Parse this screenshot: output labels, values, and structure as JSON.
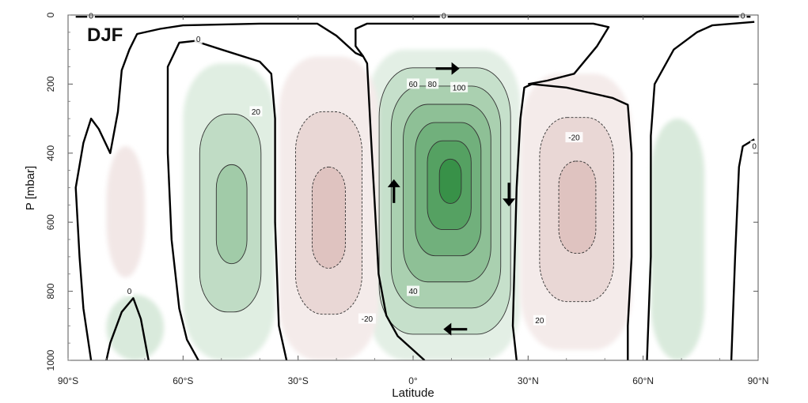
{
  "chart_data": {
    "type": "heatmap",
    "panel_label": "DJF",
    "xlabel": "Latitude",
    "ylabel": "P [mbar]",
    "xlim": [
      -90,
      90
    ],
    "ylim": [
      1000,
      0
    ],
    "x_ticks": [
      {
        "value": -90,
        "label": "90°S"
      },
      {
        "value": -60,
        "label": "60°S"
      },
      {
        "value": -30,
        "label": "30°S"
      },
      {
        "value": 0,
        "label": "0°"
      },
      {
        "value": 30,
        "label": "30°N"
      },
      {
        "value": 60,
        "label": "60°N"
      },
      {
        "value": 90,
        "label": "90°N"
      }
    ],
    "y_ticks": [
      {
        "value": 0,
        "label": "0"
      },
      {
        "value": 200,
        "label": "200"
      },
      {
        "value": 400,
        "label": "400"
      },
      {
        "value": 600,
        "label": "600"
      },
      {
        "value": 800,
        "label": "800"
      },
      {
        "value": 1000,
        "label": "1000"
      }
    ],
    "colors": {
      "positive": "#2e8b3e",
      "negative": "#b77a72",
      "zero_contour": "#000000"
    },
    "cells": [
      {
        "name": "tropical-north-cell",
        "sign": "positive",
        "lat": [
          -12,
          28
        ],
        "p": [
          100,
          1000
        ],
        "peak_lat": 10,
        "peak_p": 470,
        "peak": 130
      },
      {
        "name": "south-mid-latitude-cell",
        "sign": "negative",
        "lat": [
          -35,
          -9
        ],
        "p": [
          120,
          1000
        ],
        "peak_lat": -22,
        "peak_p": 600,
        "peak": -30
      },
      {
        "name": "north-mid-latitude-cell",
        "sign": "positive",
        "lat": [
          -60,
          -36
        ],
        "p": [
          140,
          1000
        ],
        "peak_lat": -47,
        "peak_p": 580,
        "peak": 28
      },
      {
        "name": "north-ferrel-cell",
        "sign": "negative",
        "lat": [
          28,
          57
        ],
        "p": [
          170,
          970
        ],
        "peak_lat": 43,
        "peak_p": 550,
        "peak": -28
      },
      {
        "name": "south-polar-cell",
        "sign": "positive",
        "lat": [
          -80,
          -65
        ],
        "p": [
          810,
          1000
        ],
        "peak_lat": -72,
        "peak_p": 930,
        "peak": 5
      },
      {
        "name": "south-polar-neg-cell",
        "sign": "negative",
        "lat": [
          -80,
          -70
        ],
        "p": [
          380,
          760
        ],
        "peak_lat": -75,
        "peak_p": 560,
        "peak": -3
      },
      {
        "name": "north-polar-cell",
        "sign": "positive",
        "lat": [
          62,
          76
        ],
        "p": [
          300,
          1000
        ],
        "peak_lat": 69,
        "peak_p": 650,
        "peak": 6
      }
    ],
    "contour_labels": [
      {
        "text": "0",
        "lat": -84,
        "p": 2
      },
      {
        "text": "0",
        "lat": 8,
        "p": 2
      },
      {
        "text": "0",
        "lat": 86,
        "p": 2
      },
      {
        "text": "0",
        "lat": -56,
        "p": 70
      },
      {
        "text": "0",
        "lat": -74,
        "p": 800
      },
      {
        "text": "0",
        "lat": 89,
        "p": 380
      },
      {
        "text": "20",
        "lat": -41,
        "p": 280
      },
      {
        "text": "-20",
        "lat": -12,
        "p": 880
      },
      {
        "text": "20",
        "lat": 33,
        "p": 885
      },
      {
        "text": "-20",
        "lat": 42,
        "p": 355
      },
      {
        "text": "40",
        "lat": 0,
        "p": 800
      },
      {
        "text": "60",
        "lat": 0,
        "p": 200
      },
      {
        "text": "80",
        "lat": 5,
        "p": 200
      },
      {
        "text": "100",
        "lat": 12,
        "p": 210
      }
    ],
    "arrows": [
      {
        "direction": "right",
        "lat": 9,
        "p": 155
      },
      {
        "direction": "up",
        "lat": -5,
        "p": 510
      },
      {
        "direction": "down",
        "lat": 25,
        "p": 520
      },
      {
        "direction": "left",
        "lat": 11,
        "p": 910
      }
    ]
  }
}
